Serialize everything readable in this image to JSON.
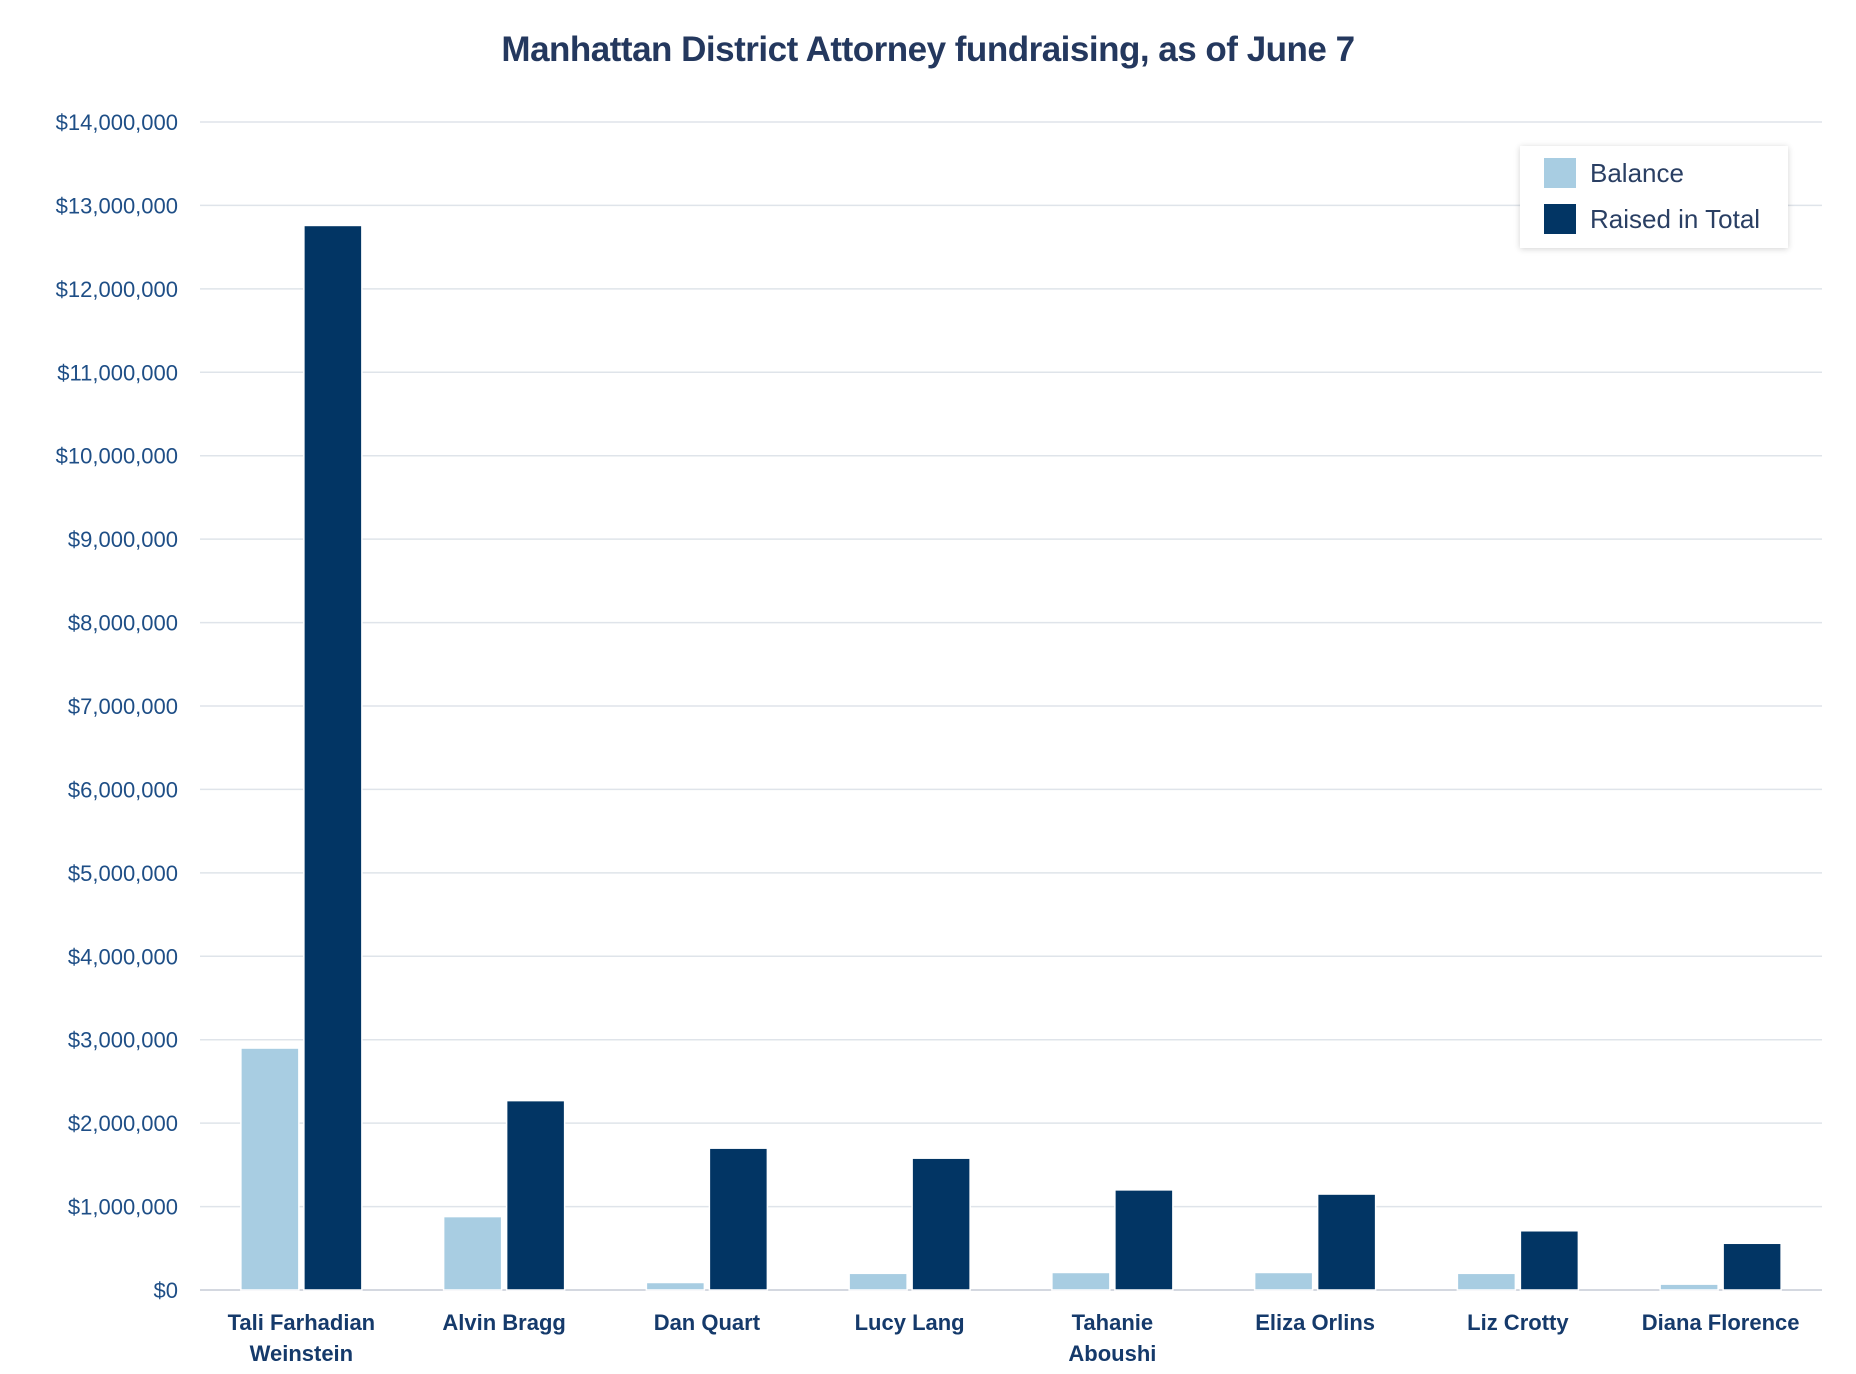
{
  "chart_data": {
    "type": "bar",
    "title": "Manhattan District Attorney fundraising, as of June 7",
    "xlabel": "",
    "ylabel": "",
    "ylim": [
      0,
      14000000
    ],
    "yticks": [
      "$0",
      "$1,000,000",
      "$2,000,000",
      "$3,000,000",
      "$4,000,000",
      "$5,000,000",
      "$6,000,000",
      "$7,000,000",
      "$8,000,000",
      "$9,000,000",
      "$10,000,000",
      "$11,000,000",
      "$12,000,000",
      "$13,000,000",
      "$14,000,000"
    ],
    "categories": [
      [
        "Tali Farhadian",
        "Weinstein"
      ],
      [
        "Alvin Bragg"
      ],
      [
        "Dan Quart"
      ],
      [
        "Lucy Lang"
      ],
      [
        "Tahanie",
        "Aboushi"
      ],
      [
        "Eliza Orlins"
      ],
      [
        "Liz Crotty"
      ],
      [
        "Diana Florence"
      ]
    ],
    "series": [
      {
        "name": "Balance",
        "color": "#a8cde2",
        "values": [
          2900000,
          880000,
          90000,
          200000,
          210000,
          210000,
          200000,
          70000
        ]
      },
      {
        "name": "Raised in Total",
        "color": "#023564",
        "values": [
          12760000,
          2270000,
          1700000,
          1580000,
          1200000,
          1150000,
          710000,
          560000
        ]
      }
    ],
    "grid": true,
    "legend": "top-right"
  }
}
